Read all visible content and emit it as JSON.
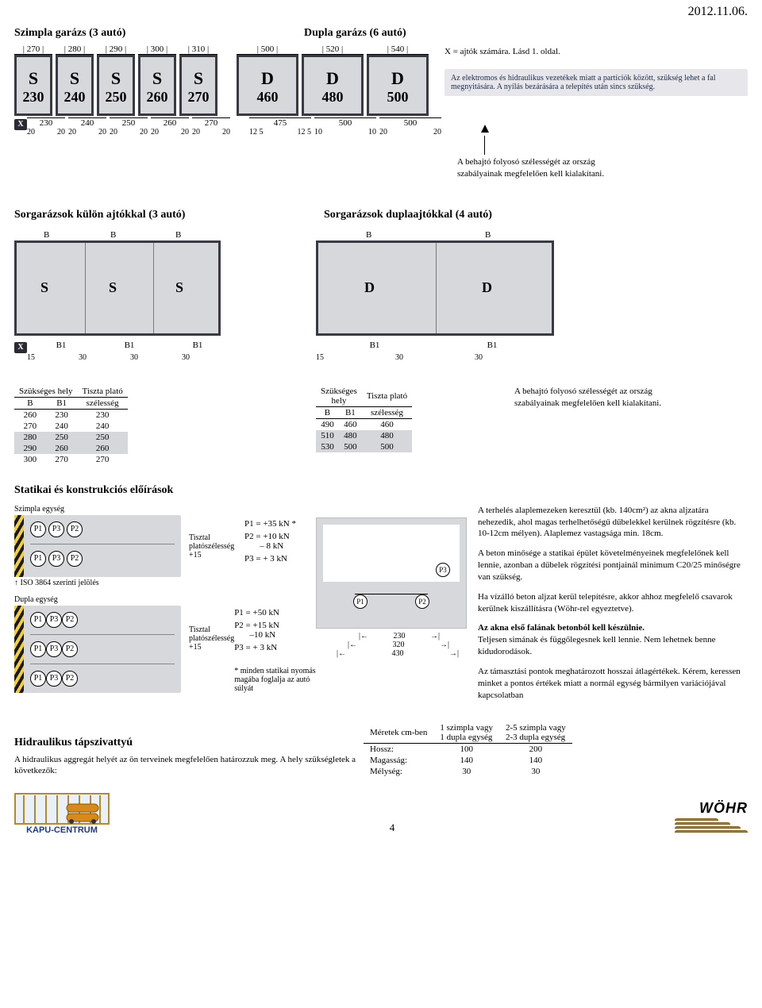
{
  "date": "2012.11.06.",
  "top": {
    "simple_title": "Szimpla garázs (3 autó)",
    "double_title": "Dupla garázs (6 autó)",
    "x_note": "X = ajtók számára. Lásd 1. oldal.",
    "grey_note": "Az elektromos és hidraulikus vezetékek miatt a partíciók között, szükség lehet a fal megnyitására. A nyílás bezárására a telepítés után sincs szükség.",
    "simple": {
      "top_dims": [
        "270",
        "280",
        "290",
        "300",
        "310"
      ],
      "labels": [
        "S",
        "S",
        "S",
        "S",
        "S"
      ],
      "nums": [
        "230",
        "240",
        "250",
        "260",
        "270"
      ],
      "bot_dims": [
        "230",
        "240",
        "250",
        "260",
        "270"
      ],
      "gaps": [
        "20",
        "20",
        "20",
        "20",
        "20",
        "20",
        "20",
        "20",
        "20",
        "20"
      ]
    },
    "double": {
      "top_dims": [
        "500",
        "520",
        "540"
      ],
      "labels": [
        "D",
        "D",
        "D"
      ],
      "nums": [
        "460",
        "480",
        "500"
      ],
      "bot_dims": [
        "475",
        "500",
        "500"
      ],
      "gaps": [
        "12 5",
        "12 5",
        "10",
        "10",
        "20",
        "20"
      ]
    },
    "corridor_note": "A behajtó folyosó szélességét az ország szabályainak megfelelően kell kialakítani."
  },
  "rowgarages": {
    "left_title": "Sorgarázsok külön ajtókkal (3 autó)",
    "right_title": "Sorgarázsok duplaajtókkal (4 autó)",
    "left": {
      "topB": [
        "B",
        "B",
        "B"
      ],
      "big": [
        "S",
        "S",
        "S"
      ],
      "botLabels": [
        "B1",
        "B1",
        "B1"
      ],
      "botdims": [
        "15",
        "30",
        "30",
        "30"
      ]
    },
    "right": {
      "topB": [
        "B",
        "B"
      ],
      "big": [
        "D",
        "D"
      ],
      "botLabels": [
        "B1",
        "B1"
      ],
      "botdims": [
        "15",
        "30",
        "30"
      ]
    }
  },
  "tables": {
    "left": {
      "head1": "Szükséges hely",
      "head2": "Tiszta plató",
      "colB": "B",
      "colB1": "B1",
      "colW": "szélesség",
      "rows": [
        {
          "b": "260",
          "b1": "230",
          "w": "230",
          "hl": false
        },
        {
          "b": "270",
          "b1": "240",
          "w": "240",
          "hl": false
        },
        {
          "b": "280",
          "b1": "250",
          "w": "250",
          "hl": true
        },
        {
          "b": "290",
          "b1": "260",
          "w": "260",
          "hl": true
        },
        {
          "b": "300",
          "b1": "270",
          "w": "270",
          "hl": false
        }
      ]
    },
    "right": {
      "head1": "Szükséges",
      "head1b": "hely",
      "head2": "Tiszta plató",
      "colB": "B",
      "colB1": "B1",
      "colW": "szélesség",
      "rows": [
        {
          "b": "490",
          "b1": "460",
          "w": "460",
          "hl": false
        },
        {
          "b": "510",
          "b1": "480",
          "w": "480",
          "hl": true
        },
        {
          "b": "530",
          "b1": "500",
          "w": "500",
          "hl": true
        }
      ]
    },
    "corridor_note": "A behajtó folyosó szélességét az ország szabályainak megfelelően kell kialakítani."
  },
  "statics": {
    "title": "Statikai és konstrukciós előírások",
    "simple_label": "Szimpla egység",
    "double_label": "Dupla egység",
    "iso_label": "ISO 3864 szerinti jelölés",
    "tiszta_label": "Tisztal platószélesség",
    "tiszta_plus": "+15",
    "forces_simple": {
      "p1": "P1 = +35 kN *",
      "p2a": "+10 kN",
      "p2b": "– 8 kN",
      "p2lab": "P2 =",
      "p3": "P3 = + 3 kN"
    },
    "forces_double": {
      "p1": "P1 = +50 kN",
      "p2a": "+15 kN",
      "p2b": "–10 kN",
      "p2lab": "P2 =",
      "p3": "P3 = + 3 kN"
    },
    "foot_star": "* minden statikai nyomás magába foglalja az autó súlyát",
    "plan_dims": {
      "d1": "230",
      "d2": "320",
      "d3": "430"
    },
    "p_texts": {
      "para1": "A terhelés alaplemezeken keresztül (kb. 140cm²) az akna aljzatára nehezedik, ahol magas terhelhetőségű dűbelekkel kerülnek rögzítésre (kb. 10-12cm mélyen). Alaplemez vastagsága min. 18cm.",
      "para2": "A beton minősége a statikai épület követelményeinek megfelelőnek kell lennie, azonban a dűbelek rögzítési pontjainál minimum C20/25 minőségre van szükség.",
      "para3": "Ha vízálló beton aljzat kerül telepítésre, akkor ahhoz megfelelő csavarok kerülnek kiszállításra (Wöhr-rel egyeztetve).",
      "para4a": "Az akna első falának betonból kell készülnie.",
      "para4b": "Teljesen simának és függőlegesnek kell lennie. Nem lehetnek benne kidudorodások.",
      "para5": "Az támasztási pontok meghatározott hosszai átlagértékek. Kérem, keressen minket a pontos értékek miatt a normál egység bármilyen variációjával kapcsolatban"
    }
  },
  "hydraulic": {
    "title": "Hidraulikus tápszivattyú",
    "sub": "A hidraulikus aggregát helyét az ön terveinek megfelelően határozzuk meg. A hely szükségletek a következők:",
    "table": {
      "h0": "Méretek cm-ben",
      "h1a": "1 szimpla vagy",
      "h1b": "1 dupla egység",
      "h2a": "2-5 szimpla vagy",
      "h2b": "2-3 dupla egység",
      "rows": [
        {
          "k": "Hossz:",
          "a": "100",
          "b": "200"
        },
        {
          "k": "Magasság:",
          "a": "140",
          "b": "140"
        },
        {
          "k": "Mélység:",
          "a": "30",
          "b": "30"
        }
      ]
    }
  },
  "footer": {
    "kapu": "KAPU-CENTRUM",
    "page": "4",
    "wohr": "WÖHR"
  },
  "colors": {
    "panel_bg": "#d7d8dc",
    "panel_border": "#3a3a44",
    "grey_box": "#e7e7eb",
    "highlight_row": "#d6d7da",
    "wohr_gold_fill": "#bb8a2a",
    "wohr_gold_stroke": "#7a5a18",
    "kapu_frame": "#b58a2a",
    "kapu_sky": "#e8f1f7"
  }
}
